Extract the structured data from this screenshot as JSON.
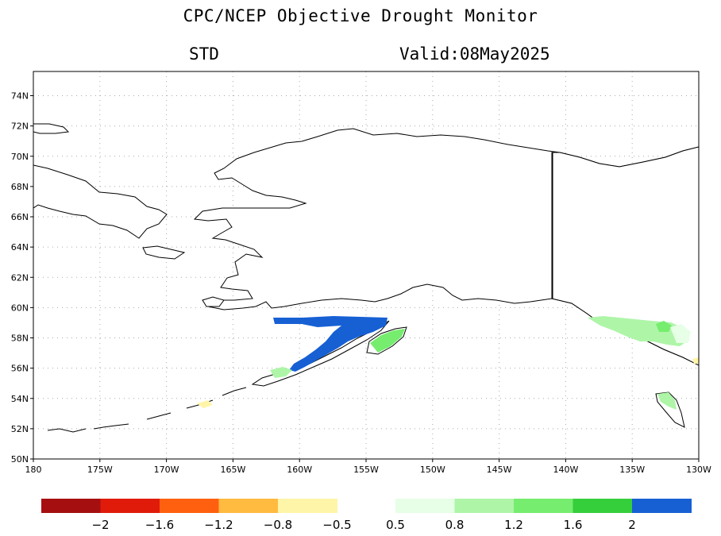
{
  "title": "CPC/NCEP Objective Drought Monitor",
  "subtitle_left": "STD",
  "subtitle_right": "Valid:08May2025",
  "lon_labels": [
    "180",
    "175W",
    "170W",
    "165W",
    "160W",
    "155W",
    "150W",
    "145W",
    "140W",
    "135W",
    "130W"
  ],
  "lat_labels": [
    "50N",
    "52N",
    "54N",
    "56N",
    "58N",
    "60N",
    "62N",
    "64N",
    "66N",
    "68N",
    "70N",
    "72N",
    "74N"
  ],
  "colorbar": {
    "dry": [
      {
        "color": "#a50f0f"
      },
      {
        "color": "#e01b0a"
      },
      {
        "color": "#ff6010"
      },
      {
        "color": "#ffba40"
      },
      {
        "color": "#fff5a8"
      }
    ],
    "wet": [
      {
        "color": "#e6ffe6"
      },
      {
        "color": "#aef5a8"
      },
      {
        "color": "#76ed6e"
      },
      {
        "color": "#36cf3c"
      },
      {
        "color": "#1760d4"
      }
    ],
    "dry_labels": [
      "−2",
      "−1.6",
      "−1.2",
      "−0.8",
      "−0.5"
    ],
    "wet_labels": [
      "0.5",
      "0.8",
      "1.2",
      "1.6",
      "2"
    ]
  }
}
